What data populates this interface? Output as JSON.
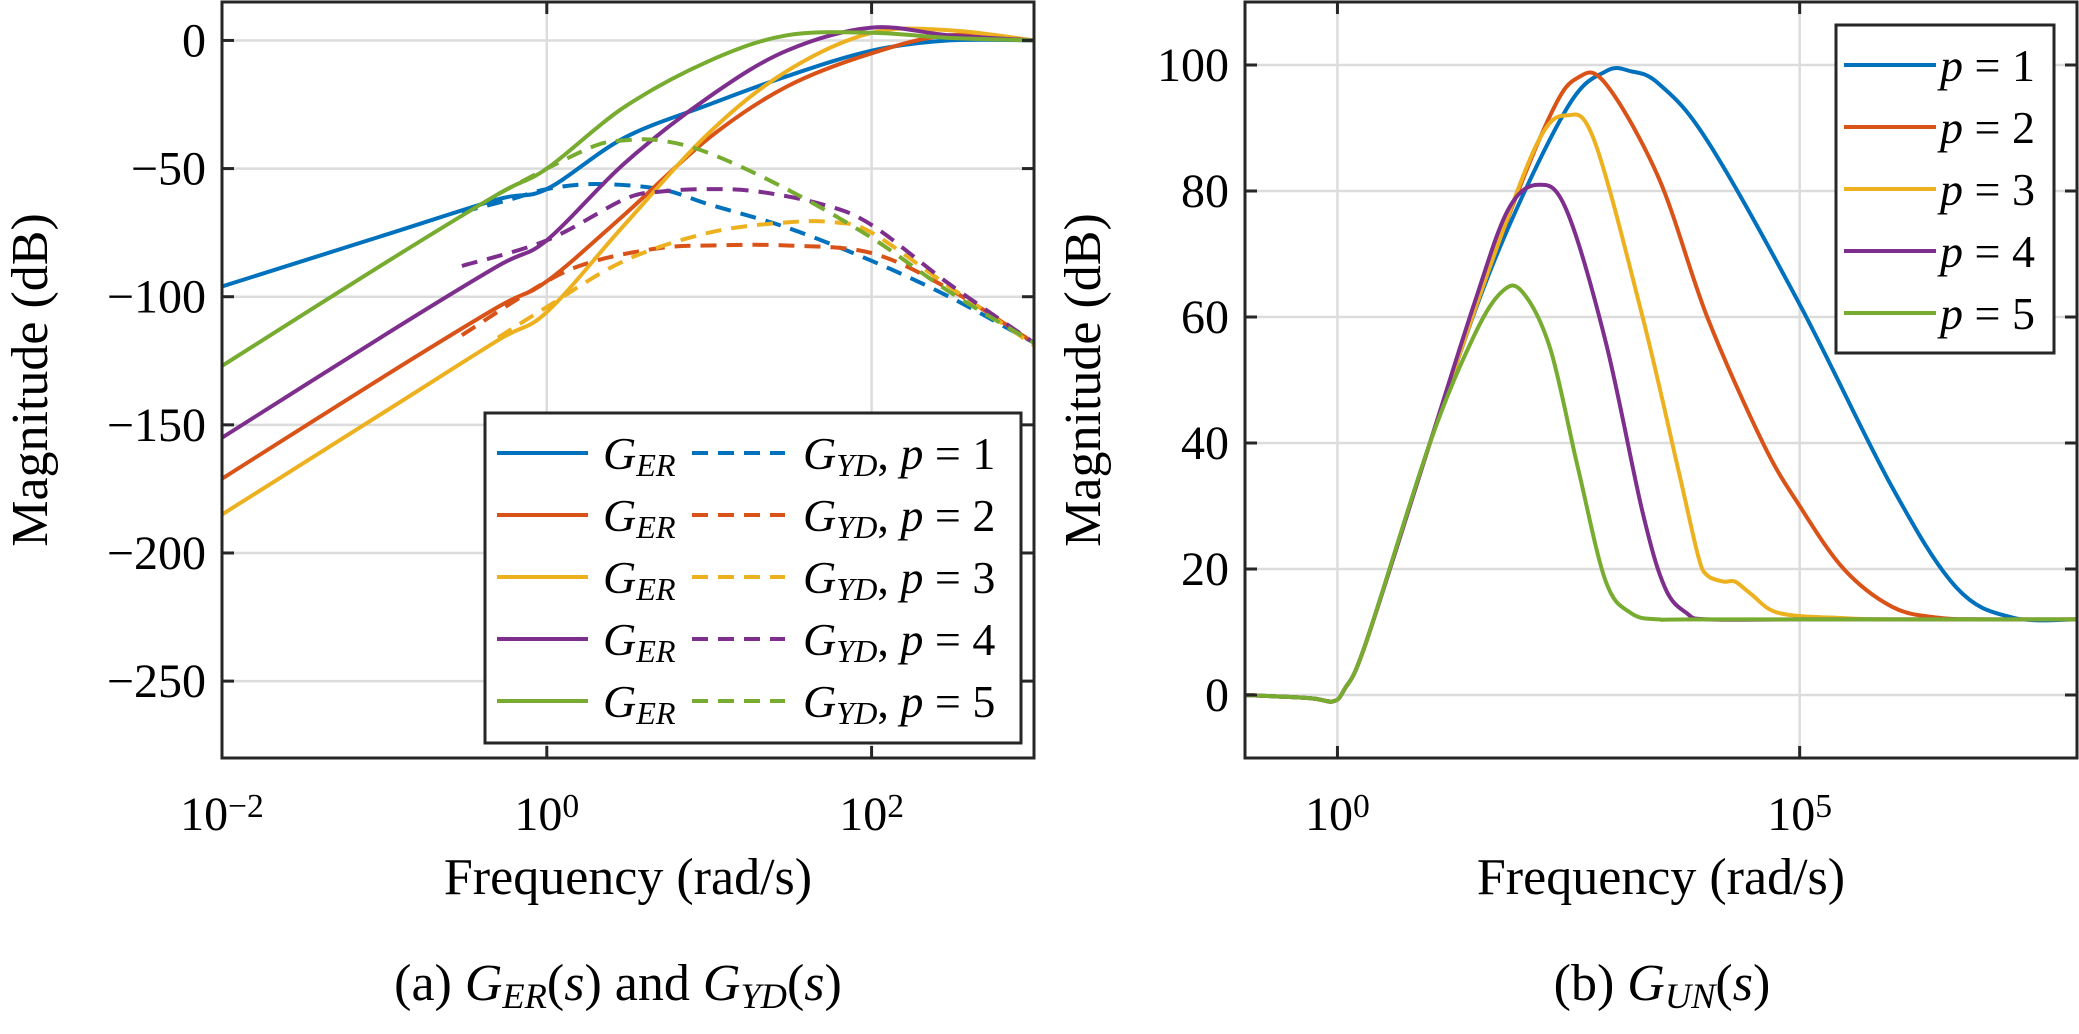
{
  "chart_data": [
    {
      "type": "line",
      "panel": "a",
      "caption": "(a) G_ER(s) and G_YD(s)",
      "xlabel": "Frequency (rad/s)",
      "ylabel": "Magnitude (dB)",
      "xscale": "log",
      "xlim": [
        0.01,
        1000
      ],
      "ylim": [
        -280,
        15
      ],
      "xticks": [
        {
          "value": 0.01,
          "base": "10",
          "exp": "−2"
        },
        {
          "value": 1,
          "base": "10",
          "exp": "0"
        },
        {
          "value": 100,
          "base": "10",
          "exp": "2"
        }
      ],
      "yticks": [
        {
          "value": 0,
          "label": "0"
        },
        {
          "value": -50,
          "label": "−50"
        },
        {
          "value": -100,
          "label": "−100"
        },
        {
          "value": -150,
          "label": "−150"
        },
        {
          "value": -200,
          "label": "−200"
        },
        {
          "value": -250,
          "label": "−250"
        }
      ],
      "grid": true,
      "legend_position": "bottom-right",
      "legend_rows": [
        {
          "solid": "G_ER",
          "dashed": "G_YD",
          "p": "p = 1"
        },
        {
          "solid": "G_ER",
          "dashed": "G_YD",
          "p": "p = 2"
        },
        {
          "solid": "G_ER",
          "dashed": "G_YD",
          "p": "p = 3"
        },
        {
          "solid": "G_ER",
          "dashed": "G_YD",
          "p": "p = 4"
        },
        {
          "solid": "G_ER",
          "dashed": "G_YD",
          "p": "p = 5"
        }
      ],
      "series": [
        {
          "name": "G_ER, p = 1",
          "style": "solid",
          "color": "#0072BD",
          "x": [
            0.01,
            0.1,
            0.5,
            1,
            3,
            10,
            30,
            100,
            300,
            1000
          ],
          "y": [
            -96,
            -76,
            -62,
            -58,
            -38,
            -25,
            -14,
            -4,
            0,
            0
          ]
        },
        {
          "name": "G_YD, p = 1",
          "style": "dashed",
          "color": "#0072BD",
          "x": [
            0.3,
            0.6,
            1,
            2,
            5,
            10,
            30,
            100,
            300,
            1000
          ],
          "y": [
            -67,
            -62,
            -58,
            -56,
            -58,
            -64,
            -73,
            -86,
            -100,
            -118
          ]
        },
        {
          "name": "G_ER, p = 2",
          "style": "solid",
          "color": "#D95319",
          "x": [
            0.01,
            0.1,
            0.5,
            1,
            3,
            10,
            30,
            100,
            300,
            1000
          ],
          "y": [
            -171,
            -131,
            -104,
            -94,
            -68,
            -38,
            -18,
            -5,
            2,
            0
          ]
        },
        {
          "name": "G_YD, p = 2",
          "style": "dashed",
          "color": "#D95319",
          "x": [
            0.3,
            1,
            2,
            5,
            10,
            30,
            100,
            300,
            1000
          ],
          "y": [
            -115,
            -94,
            -86,
            -81,
            -80,
            -80,
            -83,
            -97,
            -118
          ]
        },
        {
          "name": "G_ER, p = 3",
          "style": "solid",
          "color": "#EDB120",
          "x": [
            0.01,
            0.1,
            0.5,
            1,
            3,
            10,
            30,
            100,
            300,
            1000
          ],
          "y": [
            -185,
            -145,
            -117,
            -106,
            -72,
            -36,
            -12,
            3,
            4,
            0
          ]
        },
        {
          "name": "G_YD, p = 3",
          "style": "dashed",
          "color": "#EDB120",
          "x": [
            0.5,
            1,
            3,
            10,
            30,
            60,
            100,
            300,
            1000
          ],
          "y": [
            -116,
            -104,
            -86,
            -75,
            -71,
            -71,
            -75,
            -96,
            -119
          ]
        },
        {
          "name": "G_ER, p = 4",
          "style": "solid",
          "color": "#7E2F8E",
          "x": [
            0.01,
            0.1,
            0.5,
            1,
            3,
            10,
            30,
            100,
            300,
            1000
          ],
          "y": [
            -155,
            -115,
            -88,
            -78,
            -48,
            -22,
            -4,
            5,
            2,
            0
          ]
        },
        {
          "name": "G_YD, p = 4",
          "style": "dashed",
          "color": "#7E2F8E",
          "x": [
            0.3,
            1,
            3,
            5,
            10,
            20,
            50,
            100,
            300,
            1000
          ],
          "y": [
            -88,
            -78,
            -62,
            -59,
            -58,
            -59,
            -64,
            -72,
            -95,
            -118
          ]
        },
        {
          "name": "G_ER, p = 5",
          "style": "solid",
          "color": "#77AC30",
          "x": [
            0.01,
            0.1,
            0.5,
            1,
            3,
            10,
            30,
            100,
            300,
            1000
          ],
          "y": [
            -127,
            -87,
            -60,
            -50,
            -26,
            -8,
            2,
            3,
            1,
            0
          ]
        },
        {
          "name": "G_YD, p = 5",
          "style": "dashed",
          "color": "#77AC30",
          "x": [
            0.5,
            1,
            2,
            3,
            5,
            10,
            30,
            100,
            300,
            1000
          ],
          "y": [
            -60,
            -50,
            -41,
            -39,
            -39,
            -44,
            -58,
            -77,
            -98,
            -118
          ]
        }
      ]
    },
    {
      "type": "line",
      "panel": "b",
      "caption": "(b) G_UN(s)",
      "xlabel": "Frequency (rad/s)",
      "ylabel": "Magnitude (dB)",
      "xscale": "log",
      "xlim": [
        0.1,
        100000000
      ],
      "ylim": [
        -10,
        110
      ],
      "xticks": [
        {
          "value": 1,
          "base": "10",
          "exp": "0"
        },
        {
          "value": 100000,
          "base": "10",
          "exp": "5"
        }
      ],
      "yticks": [
        {
          "value": 0,
          "label": "0"
        },
        {
          "value": 20,
          "label": "20"
        },
        {
          "value": 40,
          "label": "40"
        },
        {
          "value": 60,
          "label": "60"
        },
        {
          "value": 80,
          "label": "80"
        },
        {
          "value": 100,
          "label": "100"
        }
      ],
      "grid": true,
      "legend_position": "top-right",
      "series": [
        {
          "name": "p = 1",
          "color": "#0072BD",
          "x": [
            0.1,
            0.5,
            0.9,
            1.2,
            2,
            10,
            50,
            300,
            800,
            1500,
            3000,
            10000,
            100000,
            1000000,
            5000000,
            20000000,
            100000000
          ],
          "y": [
            0,
            -0.5,
            -1,
            1,
            8,
            40,
            69,
            93,
            99,
            99,
            97,
            88,
            62,
            33,
            17,
            12.3,
            12
          ]
        },
        {
          "name": "p = 2",
          "color": "#D95319",
          "x": [
            0.1,
            0.5,
            0.9,
            1.2,
            2,
            10,
            50,
            200,
            400,
            800,
            3000,
            10000,
            40000,
            100000,
            300000,
            1000000,
            3000000,
            10000000,
            100000000
          ],
          "y": [
            0,
            -0.5,
            -1,
            1,
            8,
            40,
            70,
            92,
            98,
            97,
            82,
            60,
            40,
            30,
            20,
            14,
            12.3,
            12,
            12
          ]
        },
        {
          "name": "p = 3",
          "color": "#EDB120",
          "x": [
            0.1,
            0.5,
            0.9,
            1.2,
            2,
            10,
            50,
            150,
            300,
            600,
            2000,
            5000,
            8000,
            10000,
            15000,
            20000,
            30000,
            60000,
            300000,
            1000000,
            100000000
          ],
          "y": [
            0,
            -0.5,
            -1,
            1,
            8,
            40,
            70,
            88,
            92,
            88,
            60,
            35,
            22,
            19,
            18,
            18,
            16,
            13,
            12.2,
            12,
            12
          ]
        },
        {
          "name": "p = 4",
          "color": "#7E2F8E",
          "x": [
            0.1,
            0.5,
            0.9,
            1.2,
            2,
            10,
            30,
            70,
            150,
            300,
            800,
            2000,
            3500,
            6000,
            10000,
            100000,
            100000000
          ],
          "y": [
            0,
            -0.5,
            -1,
            1,
            8,
            40,
            62,
            77,
            81,
            77,
            56,
            29,
            17,
            13,
            12,
            12,
            12
          ]
        },
        {
          "name": "p = 5",
          "color": "#77AC30",
          "x": [
            0.1,
            0.5,
            0.9,
            1.2,
            2,
            10,
            30,
            60,
            100,
            200,
            400,
            800,
            1500,
            3000,
            10000,
            100000000
          ],
          "y": [
            0,
            -0.5,
            -1,
            1,
            8,
            40,
            57,
            64,
            64,
            55,
            36,
            18,
            13,
            12,
            12,
            12
          ]
        }
      ]
    }
  ]
}
